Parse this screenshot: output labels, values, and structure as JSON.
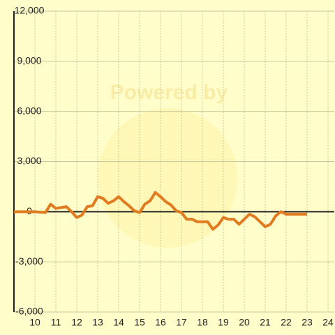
{
  "chart_data": {
    "type": "line",
    "watermark": "Powered by",
    "x": [
      9,
      10,
      10.5,
      10.75,
      11,
      11.25,
      11.5,
      11.75,
      12,
      12.25,
      12.5,
      12.75,
      13,
      13.25,
      13.5,
      13.75,
      14,
      14.25,
      14.5,
      14.75,
      15,
      15.25,
      15.5,
      15.75,
      16,
      16.25,
      16.5,
      16.75,
      17,
      17.25,
      17.5,
      17.75,
      18,
      18.25,
      18.5,
      18.75,
      19,
      19.25,
      19.5,
      19.75,
      20,
      20.25,
      20.5,
      20.75,
      21,
      21.25,
      21.5,
      21.75,
      22,
      22.25,
      22.5,
      22.75,
      23
    ],
    "series": [
      {
        "color": "#e07b20",
        "values": [
          0,
          0,
          -50,
          450,
          200,
          250,
          300,
          0,
          -350,
          -200,
          300,
          350,
          900,
          800,
          500,
          650,
          900,
          600,
          350,
          50,
          -50,
          450,
          650,
          1150,
          900,
          600,
          400,
          50,
          -50,
          -450,
          -450,
          -600,
          -600,
          -600,
          -1050,
          -800,
          -350,
          -450,
          -450,
          -750,
          -450,
          -150,
          -300,
          -600,
          -900,
          -750,
          -250,
          0,
          -150,
          -150,
          -150,
          -150,
          -150
        ]
      }
    ],
    "xlim": [
      9,
      24.3
    ],
    "xticks": [
      10,
      11,
      12,
      13,
      14,
      15,
      16,
      17,
      18,
      19,
      20,
      21,
      22,
      23,
      24
    ],
    "ylim": [
      -6000,
      12000
    ],
    "yticks": [
      {
        "value": -6000,
        "label": "-6,000"
      },
      {
        "value": -3000,
        "label": "-3,000"
      },
      0,
      {
        "value": 3000,
        "label": "3,000"
      },
      {
        "value": 6000,
        "label": "6,000"
      },
      {
        "value": 9000,
        "label": "9,000"
      },
      {
        "value": 12000,
        "label": "12,000"
      }
    ],
    "grid": true
  }
}
